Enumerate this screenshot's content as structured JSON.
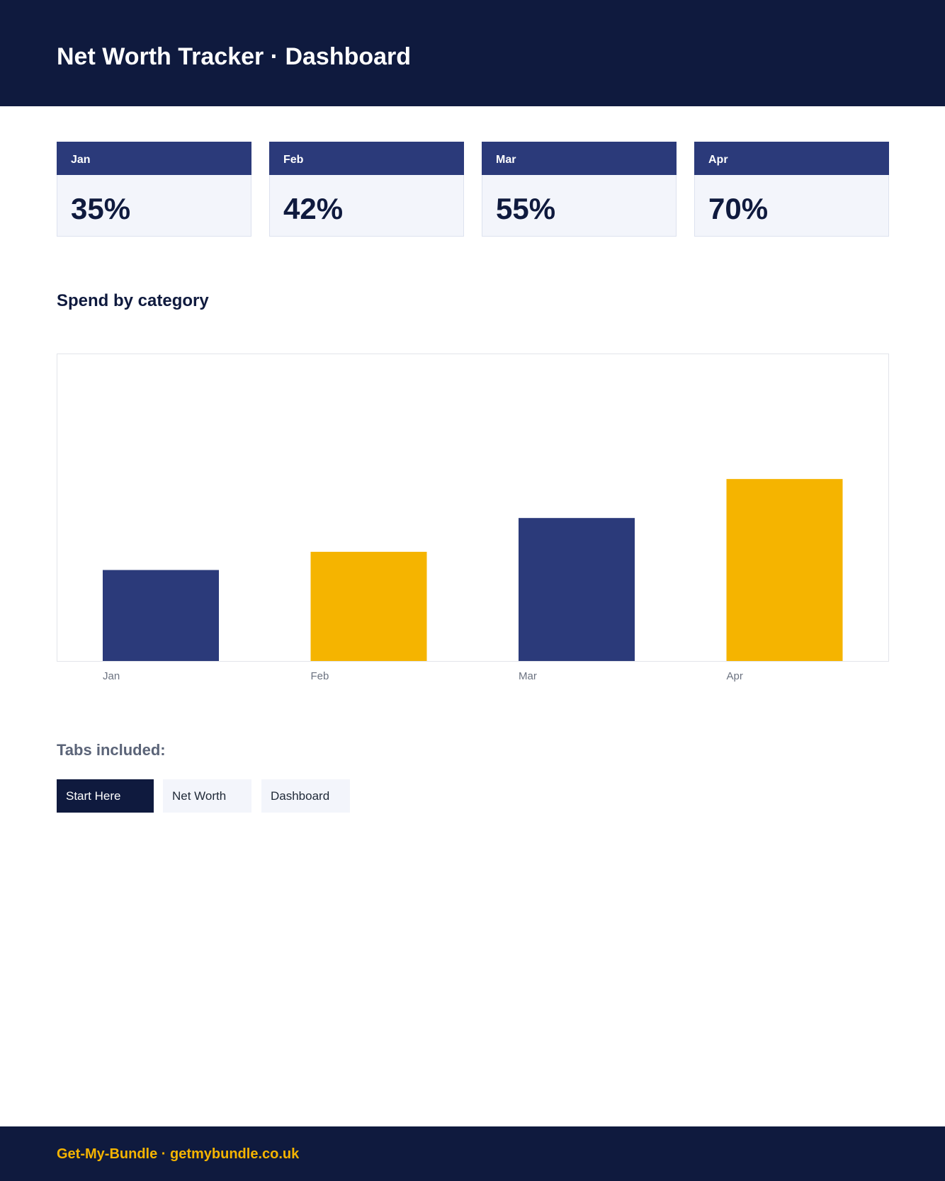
{
  "header": {
    "title": "Net Worth Tracker · Dashboard"
  },
  "cards": [
    {
      "label": "Jan",
      "value": "35%"
    },
    {
      "label": "Feb",
      "value": "42%"
    },
    {
      "label": "Mar",
      "value": "55%"
    },
    {
      "label": "Apr",
      "value": "70%"
    }
  ],
  "section": {
    "title": "Spend by category"
  },
  "chart_data": {
    "type": "bar",
    "categories": [
      "Jan",
      "Feb",
      "Mar",
      "Apr"
    ],
    "values": [
      35,
      42,
      55,
      70
    ],
    "ylim": [
      0,
      118
    ],
    "colors": [
      "#2b3a7a",
      "#f5b400",
      "#2b3a7a",
      "#f5b400"
    ],
    "grid": false
  },
  "tabs": {
    "title": "Tabs included:",
    "items": [
      {
        "label": "Start Here",
        "active": true
      },
      {
        "label": "Net Worth",
        "active": false
      },
      {
        "label": "Dashboard",
        "active": false
      }
    ]
  },
  "footer": {
    "text": "Get-My-Bundle · getmybundle.co.uk"
  },
  "colors": {
    "navy": "#0f1a3e",
    "indigo": "#2b3a7a",
    "gold": "#f5b400",
    "card_bg": "#f3f5fb"
  }
}
